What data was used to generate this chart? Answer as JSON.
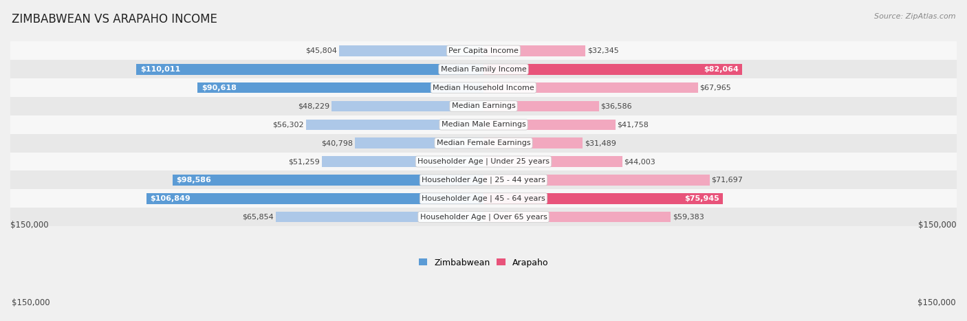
{
  "title": "ZIMBABWEAN VS ARAPAHO INCOME",
  "source": "Source: ZipAtlas.com",
  "categories": [
    "Per Capita Income",
    "Median Family Income",
    "Median Household Income",
    "Median Earnings",
    "Median Male Earnings",
    "Median Female Earnings",
    "Householder Age | Under 25 years",
    "Householder Age | 25 - 44 years",
    "Householder Age | 45 - 64 years",
    "Householder Age | Over 65 years"
  ],
  "zimbabwean_values": [
    45804,
    110011,
    90618,
    48229,
    56302,
    40798,
    51259,
    98586,
    106849,
    65854
  ],
  "arapaho_values": [
    32345,
    82064,
    67965,
    36586,
    41758,
    31489,
    44003,
    71697,
    75945,
    59383
  ],
  "zimbabwean_labels": [
    "$45,804",
    "$110,011",
    "$90,618",
    "$48,229",
    "$56,302",
    "$40,798",
    "$51,259",
    "$98,586",
    "$106,849",
    "$65,854"
  ],
  "arapaho_labels": [
    "$32,345",
    "$82,064",
    "$67,965",
    "$36,586",
    "$41,758",
    "$31,489",
    "$44,003",
    "$71,697",
    "$75,945",
    "$59,383"
  ],
  "max_value": 150000,
  "zimbabwean_color_light": "#adc8e8",
  "zimbabwean_color_dark": "#5b9bd5",
  "arapaho_color_light": "#f2a8bf",
  "arapaho_color_dark": "#e8537a",
  "bar_height": 0.58,
  "background_color": "#f0f0f0",
  "row_bg_even": "#f7f7f7",
  "row_bg_odd": "#e8e8e8",
  "label_threshold_zim": 75000,
  "label_threshold_ara": 75000,
  "title_fontsize": 12,
  "label_fontsize": 8,
  "cat_fontsize": 8
}
